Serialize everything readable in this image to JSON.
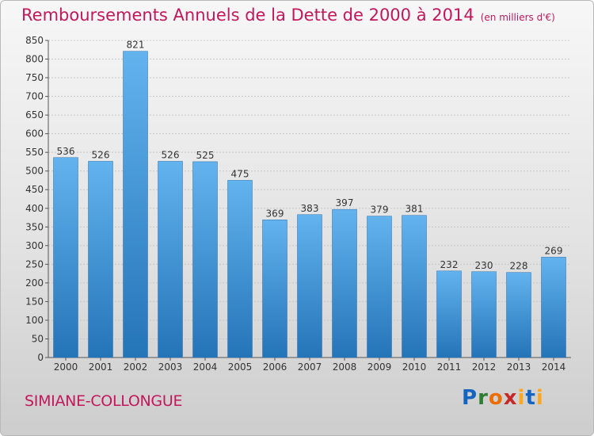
{
  "header": {
    "title": "Remboursements Annuels de la Dette de 2000 à 2014",
    "unit": "(en milliers d'€)"
  },
  "footer": {
    "commune": "SIMIANE-COLLONGUE",
    "logo": "Proxiti"
  },
  "chart_data": {
    "type": "bar",
    "title": "Remboursements Annuels de la Dette de 2000 à 2014",
    "subtitle": "(en milliers d'€)",
    "xlabel": "",
    "ylabel": "",
    "categories": [
      "2000",
      "2001",
      "2002",
      "2003",
      "2004",
      "2005",
      "2006",
      "2007",
      "2008",
      "2009",
      "2010",
      "2011",
      "2012",
      "2013",
      "2014"
    ],
    "values": [
      536,
      526,
      821,
      526,
      525,
      475,
      369,
      383,
      397,
      379,
      381,
      232,
      230,
      228,
      269
    ],
    "ylim": [
      0,
      850
    ],
    "yticks": [
      0,
      50,
      100,
      150,
      200,
      250,
      300,
      350,
      400,
      450,
      500,
      550,
      600,
      650,
      700,
      750,
      800,
      850
    ],
    "grid": true,
    "bar_color": "#3f8fd4",
    "legend": "none"
  }
}
